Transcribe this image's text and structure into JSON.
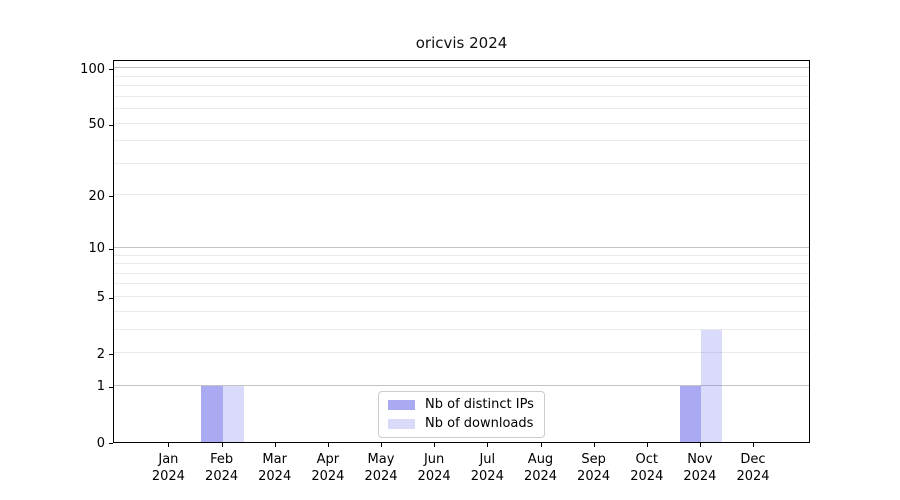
{
  "chart_data": {
    "type": "bar",
    "title": "oricvis 2024",
    "categories": [
      "Jan",
      "Feb",
      "Mar",
      "Apr",
      "May",
      "Jun",
      "Jul",
      "Aug",
      "Sep",
      "Oct",
      "Nov",
      "Dec"
    ],
    "category_year": "2024",
    "series": [
      {
        "name": "Nb of distinct IPs",
        "color": "rgba(85,85,232,0.50)",
        "legend_color": "#aaaaf3",
        "values": [
          0,
          1,
          0,
          0,
          0,
          0,
          0,
          0,
          0,
          0,
          1,
          0
        ]
      },
      {
        "name": "Nb of downloads",
        "color": "rgba(85,85,232,0.22)",
        "legend_color": "#d9d9fa",
        "values": [
          0,
          1,
          0,
          0,
          0,
          0,
          0,
          0,
          0,
          0,
          3,
          0
        ]
      }
    ],
    "yscale": "log1p",
    "ylim": [
      0,
      112
    ],
    "y_tick_labels": [
      0,
      1,
      2,
      5,
      10,
      20,
      50,
      100
    ],
    "grid_decade_lines": [
      1,
      10,
      100
    ],
    "grid_minor_lines": [
      2,
      3,
      4,
      5,
      6,
      7,
      8,
      9,
      20,
      30,
      40,
      50,
      60,
      70,
      80,
      90
    ],
    "grid": "horizontal",
    "legend_position": "lower center",
    "xlabel": "",
    "ylabel": ""
  },
  "colors": {
    "grid_decade": "#c4c4c4",
    "grid_minor": "#eaeaea",
    "spine": "#000000",
    "text": "#000000",
    "background": "#ffffff",
    "legend_border": "#cccccc"
  }
}
